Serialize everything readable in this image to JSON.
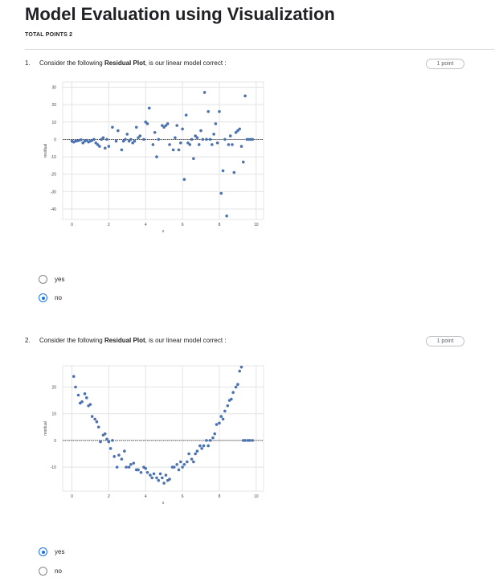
{
  "form": {
    "title": "Model Evaluation using Visualization",
    "total_points": "TOTAL POINTS 2"
  },
  "questions": [
    {
      "number": "1.",
      "text_prefix": "Consider the following ",
      "text_bold": "Residual Plot",
      "text_suffix": ", is our linear model correct :",
      "points": "1 point",
      "options": [
        {
          "label": "yes",
          "selected": false
        },
        {
          "label": "no",
          "selected": true
        }
      ]
    },
    {
      "number": "2.",
      "text_prefix": "Consider the following ",
      "text_bold": "Residual Plot",
      "text_suffix": ", is our linear model correct :",
      "points": "1 point",
      "options": [
        {
          "label": "yes",
          "selected": true
        },
        {
          "label": "no",
          "selected": false
        }
      ]
    }
  ],
  "chart_data": [
    {
      "type": "scatter",
      "xlabel": "x",
      "ylabel": "residual",
      "xlim": [
        -0.5,
        10.4
      ],
      "ylim": [
        -46,
        33
      ],
      "xticks": [
        0,
        2,
        4,
        6,
        8,
        10
      ],
      "yticks": [
        30,
        20,
        10,
        0,
        -10,
        -20,
        -30,
        -40
      ],
      "grid": true,
      "zero_line": true,
      "point_color": "#4c72b0",
      "x": [
        0,
        0.1,
        0.2,
        0.3,
        0.4,
        0.5,
        0.6,
        0.7,
        0.8,
        0.9,
        1.0,
        1.1,
        1.2,
        1.3,
        1.4,
        1.5,
        1.6,
        1.7,
        1.8,
        1.9,
        2.0,
        2.2,
        2.4,
        2.5,
        2.7,
        2.8,
        2.9,
        3.0,
        3.1,
        3.2,
        3.3,
        3.4,
        3.5,
        3.6,
        3.7,
        3.9,
        4.0,
        4.1,
        4.2,
        4.4,
        4.5,
        4.6,
        4.7,
        4.9,
        5.0,
        5.1,
        5.2,
        5.3,
        5.5,
        5.6,
        5.7,
        5.8,
        5.9,
        6.0,
        6.1,
        6.2,
        6.3,
        6.4,
        6.5,
        6.6,
        6.7,
        6.8,
        6.9,
        7.0,
        7.1,
        7.2,
        7.3,
        7.4,
        7.5,
        7.6,
        7.7,
        7.8,
        7.9,
        8.0,
        8.1,
        8.2,
        8.3,
        8.4,
        8.5,
        8.6,
        8.7,
        8.8,
        8.9,
        9.0,
        9.1,
        9.2,
        9.3,
        9.4,
        9.5,
        9.6,
        9.7,
        9.8
      ],
      "y": [
        -1,
        -1.5,
        -1,
        -0.8,
        -0.5,
        -0.2,
        -2,
        -1,
        -0.5,
        -1.5,
        -1,
        -0.5,
        0,
        -2,
        -3,
        -4,
        0,
        1,
        -5,
        0,
        -4,
        7,
        -1,
        5,
        -6,
        -1,
        0,
        3,
        -1,
        0,
        -2,
        -1,
        7,
        1,
        2,
        0,
        10,
        9,
        18,
        -3,
        4,
        -10,
        0,
        8,
        7,
        8,
        9,
        -3,
        -6,
        1,
        8,
        -6,
        -2,
        6,
        -23,
        14,
        -2,
        -3,
        0,
        -11,
        2,
        1,
        -3,
        5,
        0,
        27,
        0,
        16,
        0,
        -3,
        3,
        9,
        -2,
        16,
        -31,
        -18,
        0,
        -44,
        -3,
        2,
        -3,
        -19,
        4,
        5,
        6,
        -4,
        -13,
        25,
        0,
        0,
        0,
        0
      ]
    },
    {
      "type": "scatter",
      "xlabel": "x",
      "ylabel": "residual",
      "xlim": [
        -0.5,
        10.4
      ],
      "ylim": [
        -19,
        28
      ],
      "xticks": [
        0,
        2,
        4,
        6,
        8,
        10
      ],
      "yticks": [
        20,
        10,
        0,
        -10
      ],
      "grid": true,
      "zero_line": true,
      "point_color": "#4c72b0",
      "x": [
        0.1,
        0.2,
        0.35,
        0.45,
        0.55,
        0.7,
        0.8,
        0.9,
        1.0,
        1.1,
        1.25,
        1.35,
        1.45,
        1.55,
        1.7,
        1.8,
        1.9,
        2.0,
        2.1,
        2.2,
        2.3,
        2.45,
        2.55,
        2.7,
        2.85,
        2.95,
        3.1,
        3.2,
        3.35,
        3.5,
        3.6,
        3.75,
        3.9,
        4.0,
        4.1,
        4.25,
        4.35,
        4.45,
        4.6,
        4.7,
        4.8,
        4.9,
        5.0,
        5.1,
        5.2,
        5.3,
        5.45,
        5.55,
        5.7,
        5.8,
        5.9,
        6.0,
        6.1,
        6.25,
        6.35,
        6.5,
        6.6,
        6.7,
        6.8,
        6.95,
        7.05,
        7.15,
        7.3,
        7.4,
        7.5,
        7.65,
        7.75,
        7.85,
        8.0,
        8.1,
        8.2,
        8.3,
        8.45,
        8.55,
        8.65,
        8.75,
        8.9,
        9.0,
        9.1,
        9.2,
        9.3,
        9.4,
        9.55,
        9.65,
        9.8
      ],
      "y": [
        24,
        20,
        17,
        14,
        14.5,
        17.5,
        16,
        13,
        13.5,
        9,
        8,
        7,
        5,
        -0.5,
        2,
        2.5,
        0.5,
        -0.5,
        -3,
        0,
        -6,
        -10,
        -5.5,
        -7,
        -4,
        -10,
        -10,
        -9,
        -8.5,
        -11,
        -11,
        -12,
        -10,
        -10.5,
        -12,
        -13,
        -14,
        -12.5,
        -14,
        -15,
        -12.5,
        -14,
        -16,
        -13,
        -15,
        -14.5,
        -10,
        -10,
        -9,
        -11,
        -8,
        -10,
        -9,
        -8,
        -5,
        -7,
        -8,
        -5,
        -4,
        -2,
        -3,
        -2,
        0,
        -2,
        0,
        1,
        2.5,
        6,
        6.5,
        9,
        8,
        11,
        13,
        15,
        15.5,
        18,
        20,
        21,
        26,
        27.5,
        0,
        0,
        0,
        0,
        0
      ]
    }
  ]
}
